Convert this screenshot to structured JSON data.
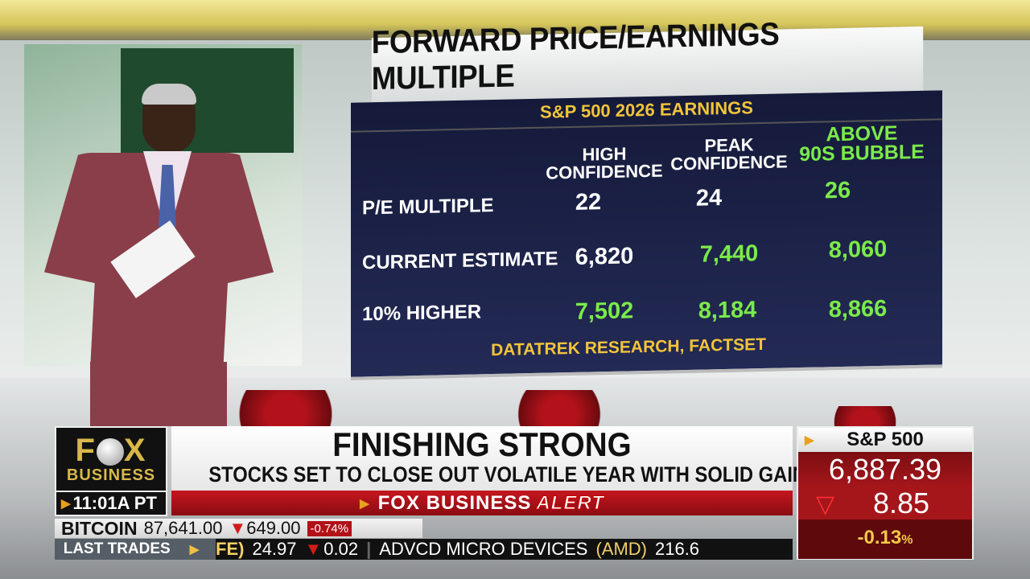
{
  "board": {
    "title": "FORWARD PRICE/EARNINGS MULTIPLE",
    "subtitle": "S&P 500 2026 EARNINGS",
    "columns": [
      {
        "line1": "HIGH",
        "line2": "CONFIDENCE"
      },
      {
        "line1": "PEAK",
        "line2": "CONFIDENCE"
      },
      {
        "line1": "ABOVE",
        "line2": "90S BUBBLE"
      }
    ],
    "rows": [
      {
        "label": "P/E MULTIPLE",
        "values": [
          "22",
          "24",
          "26"
        ]
      },
      {
        "label": "CURRENT ESTIMATE",
        "values": [
          "6,820",
          "7,440",
          "8,060"
        ]
      },
      {
        "label": "10% HIGHER",
        "values": [
          "7,502",
          "8,184",
          "8,866"
        ]
      }
    ],
    "source": "DATATREK RESEARCH, FACTSET",
    "colors": {
      "white_value": "#ffffff",
      "green_value": "#7bea4a",
      "gold": "#f2c43a",
      "panel": "#1a2045"
    }
  },
  "lower_third": {
    "logo": {
      "line1": "FOX",
      "line2": "BUSINESS"
    },
    "time": "11:01A PT",
    "headline": "FINISHING STRONG",
    "subheadline": "STOCKS SET TO CLOSE OUT VOLATILE YEAR WITH SOLID GAINS",
    "alert": {
      "brand": "FOX BUSINESS",
      "label": "ALERT"
    },
    "bitcoin": {
      "label": "BITCOIN",
      "price": "87,641.00",
      "change": "649.00",
      "pct": "-0.74%"
    },
    "ticker": {
      "label": "LAST TRADES",
      "items": [
        "FE)",
        "24.97",
        "0.02",
        "ADVCD MICRO DEVICES",
        "(AMD)",
        "216.6"
      ]
    },
    "index": {
      "name": "S&P 500",
      "price": "6,887.39",
      "change": "8.85",
      "pct": "-0.13",
      "pct_sign": "%"
    }
  }
}
